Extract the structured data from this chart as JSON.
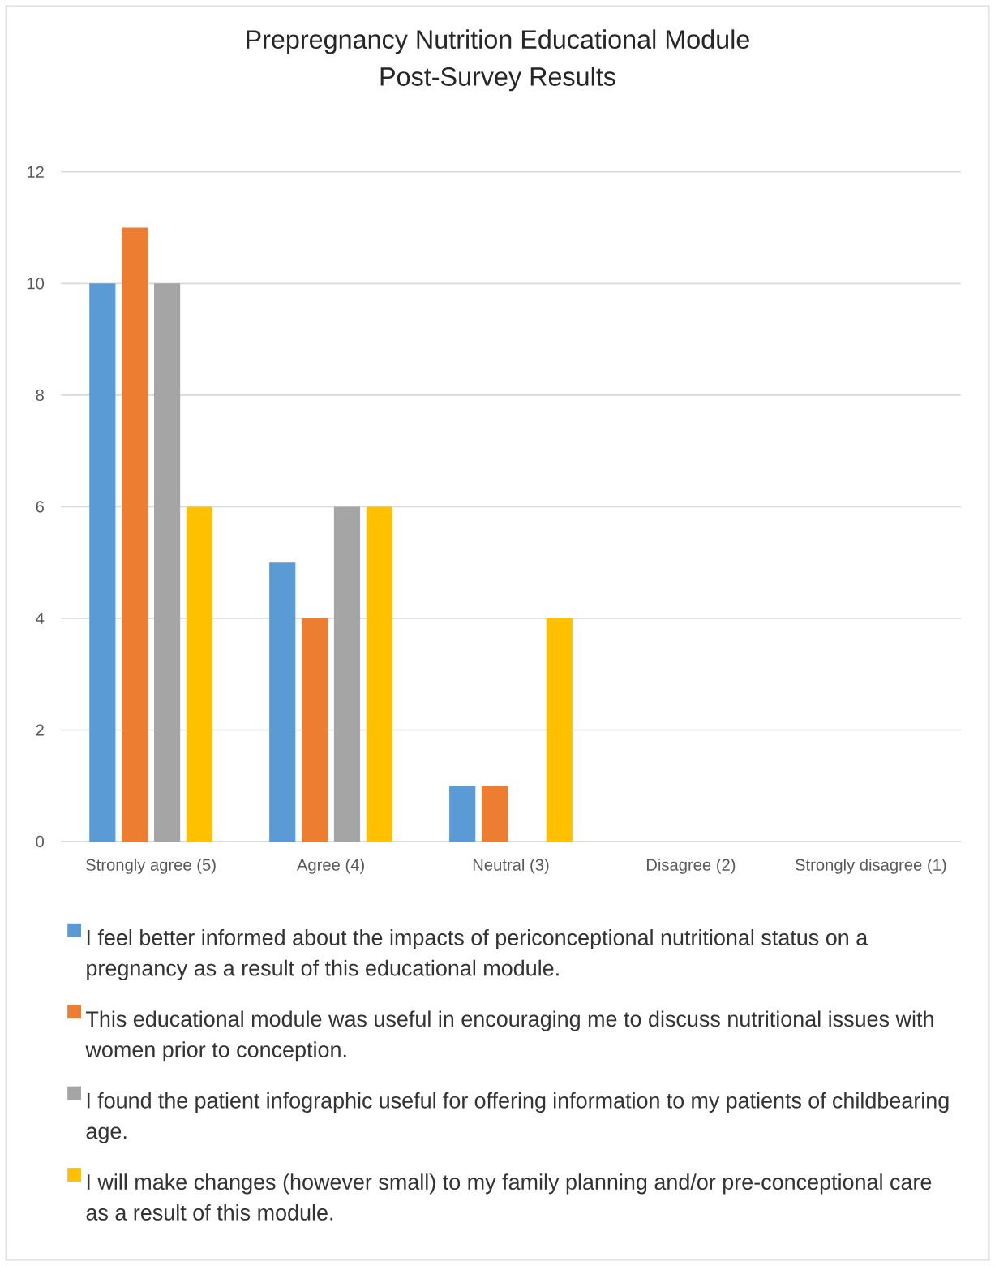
{
  "chart_data": {
    "type": "bar",
    "title": "Prepregnancy Nutrition Educational Module",
    "subtitle": "Post-Survey Results",
    "categories": [
      "Strongly agree (5)",
      "Agree (4)",
      "Neutral (3)",
      "Disagree (2)",
      "Strongly disagree (1)"
    ],
    "series": [
      {
        "name": "I feel better informed about the impacts of periconceptional nutritional status on a pregnancy as a result of this educational module.",
        "color": "#5b9bd5",
        "values": [
          10,
          5,
          1,
          0,
          0
        ]
      },
      {
        "name": "This educational module was useful in encouraging me to discuss nutritional issues with women prior to conception.",
        "color": "#ed7d31",
        "values": [
          11,
          4,
          1,
          0,
          0
        ]
      },
      {
        "name": "I found the patient infographic useful for offering information to my patients of childbearing age.",
        "color": "#a5a5a5",
        "values": [
          10,
          6,
          0,
          0,
          0
        ]
      },
      {
        "name": "I will make changes (however small) to my family planning and/or pre-conceptional care as a result of this module.",
        "color": "#ffc000",
        "values": [
          6,
          6,
          4,
          0,
          0
        ]
      }
    ],
    "ylim": [
      0,
      12
    ],
    "yticks": [
      0,
      2,
      4,
      6,
      8,
      10,
      12
    ],
    "grid": "y",
    "legend": "bottom"
  }
}
